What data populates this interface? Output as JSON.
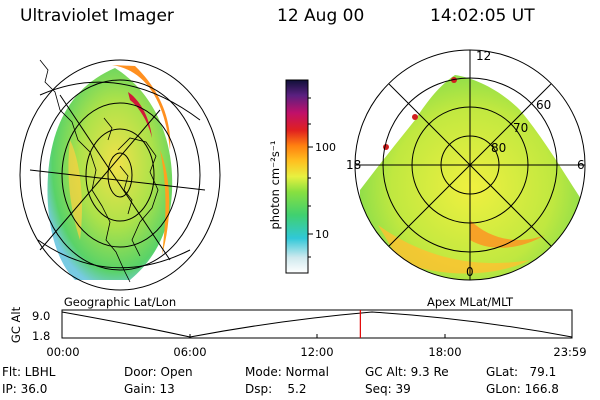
{
  "header": {
    "title": "Ultraviolet Imager",
    "date": "12 Aug 00",
    "time": "14:02:05 UT"
  },
  "colorbar": {
    "unit_label": "photon cm⁻²s⁻¹",
    "ticks": [
      "100",
      "10"
    ]
  },
  "left_panel": {
    "label": "Geographic Lat/Lon"
  },
  "right_panel": {
    "label": "Apex MLat/MLT",
    "mlt_labels": {
      "top": "12",
      "left": "18",
      "right": "6",
      "bottom": "0"
    },
    "lat_labels": [
      "60",
      "70",
      "80"
    ]
  },
  "altitude_plot": {
    "ylabel": "GC Alt",
    "yticks": [
      "9.0",
      "1.8"
    ],
    "xticks": [
      "00:00",
      "06:00",
      "12:00",
      "18:00",
      "23:59"
    ],
    "current_time_fraction": 0.585,
    "marker_color": "#e00000"
  },
  "info": {
    "flt": "Flt: LBHL",
    "ip": "IP: 36.0",
    "door": "Door: Open",
    "gain": "Gain: 13",
    "mode": "Mode: Normal",
    "dsp": "Dsp:    5.2",
    "gcalt": "GC Alt: 9.3 Re",
    "seq": "Seq: 39",
    "glat": "GLat:   79.1",
    "glon": "GLon: 166.8"
  }
}
